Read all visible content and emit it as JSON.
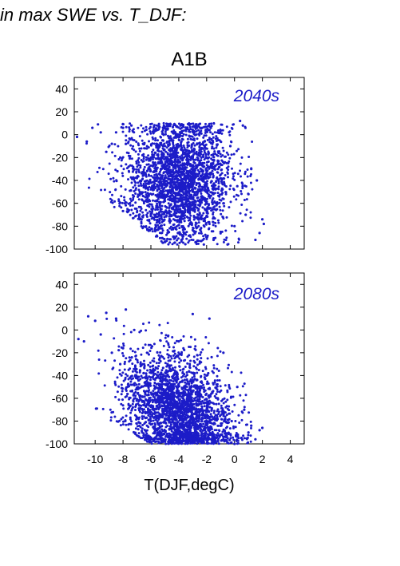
{
  "header_text": "in max SWE vs. T_DJF:",
  "figure_title": "A1B",
  "xlabel": "T(DJF,degC)",
  "colors": {
    "points": "#1c1cc8",
    "axes": "#000000",
    "background": "#ffffff"
  },
  "chart_data": [
    {
      "type": "scatter",
      "panel_label": "2040s",
      "xlim": [
        -11.5,
        5
      ],
      "ylim": [
        -100,
        50
      ],
      "yticks": [
        40,
        20,
        0,
        -20,
        -40,
        -60,
        -80,
        -100
      ],
      "xticks": [
        -10,
        -8,
        -6,
        -4,
        -2,
        0,
        2,
        4
      ],
      "grid": false,
      "points": [
        [
          -11.3,
          -2
        ],
        [
          -10.6,
          -6
        ],
        [
          -10.2,
          6
        ],
        [
          -9.6,
          2
        ],
        [
          -9.8,
          9
        ],
        [
          -9.2,
          -15
        ],
        [
          -8.8,
          -8
        ],
        [
          -8.5,
          2
        ],
        [
          -8.4,
          -32
        ],
        [
          -8.2,
          -20
        ],
        [
          -8.0,
          6
        ],
        [
          -7.6,
          -28
        ],
        [
          -7.4,
          8
        ],
        [
          -7.0,
          -38
        ],
        [
          -6.8,
          -50
        ],
        [
          -6.6,
          -18
        ],
        [
          -6.4,
          -58
        ],
        [
          -6.2,
          -62
        ],
        [
          -6.0,
          -70
        ],
        [
          -5.8,
          -44
        ],
        [
          -5.5,
          -76
        ],
        [
          -5.2,
          -82
        ],
        [
          -5.0,
          -30
        ],
        [
          -4.8,
          -86
        ],
        [
          -4.6,
          -55
        ],
        [
          -4.3,
          -90
        ],
        [
          -4.0,
          -65
        ],
        [
          -3.8,
          -92
        ],
        [
          -3.5,
          -40
        ],
        [
          -3.2,
          -88
        ],
        [
          -3.0,
          -20
        ],
        [
          -2.8,
          -94
        ],
        [
          -2.5,
          -70
        ],
        [
          -2.2,
          -96
        ],
        [
          -2.0,
          -50
        ],
        [
          -1.8,
          4
        ],
        [
          -1.5,
          -92
        ],
        [
          -1.2,
          -30
        ],
        [
          -1.0,
          -85
        ],
        [
          -0.8,
          -60
        ],
        [
          -0.5,
          -96
        ],
        [
          -0.3,
          -10
        ],
        [
          0.0,
          -80
        ],
        [
          0.2,
          -45
        ],
        [
          0.4,
          12
        ],
        [
          0.6,
          8
        ],
        [
          0.8,
          -70
        ],
        [
          1.0,
          -52
        ],
        [
          1.2,
          -30
        ],
        [
          1.5,
          -92
        ],
        [
          1.8,
          -86
        ],
        [
          2.0,
          -74
        ],
        [
          2.1,
          -78
        ],
        [
          1.6,
          -40
        ]
      ]
    },
    {
      "type": "scatter",
      "panel_label": "2080s",
      "xlim": [
        -11.5,
        5
      ],
      "ylim": [
        -100,
        50
      ],
      "yticks": [
        40,
        20,
        0,
        -20,
        -40,
        -60,
        -80,
        -100
      ],
      "xticks": [
        -10,
        -8,
        -6,
        -4,
        -2,
        0,
        2,
        4
      ],
      "grid": false,
      "points": [
        [
          -11.2,
          -8
        ],
        [
          -10.8,
          -10
        ],
        [
          -10.5,
          12
        ],
        [
          -10.0,
          8
        ],
        [
          -9.6,
          -4
        ],
        [
          -9.2,
          15
        ],
        [
          -8.8,
          -20
        ],
        [
          -8.5,
          10
        ],
        [
          -8.2,
          -30
        ],
        [
          -8.0,
          -16
        ],
        [
          -7.8,
          18
        ],
        [
          -7.5,
          -42
        ],
        [
          -7.2,
          0
        ],
        [
          -7.0,
          -52
        ],
        [
          -6.8,
          -58
        ],
        [
          -6.5,
          -66
        ],
        [
          -6.2,
          -72
        ],
        [
          -6.0,
          -80
        ],
        [
          -5.8,
          -86
        ],
        [
          -5.5,
          -90
        ],
        [
          -5.2,
          -95
        ],
        [
          -5.0,
          -60
        ],
        [
          -4.8,
          -30
        ],
        [
          -4.5,
          -98
        ],
        [
          -4.2,
          -76
        ],
        [
          -4.0,
          -10
        ],
        [
          -3.8,
          -99
        ],
        [
          -3.5,
          -88
        ],
        [
          -3.2,
          -50
        ],
        [
          -3.0,
          14
        ],
        [
          -2.8,
          -96
        ],
        [
          -2.5,
          -70
        ],
        [
          -2.2,
          -99
        ],
        [
          -2.0,
          -40
        ],
        [
          -1.8,
          10
        ],
        [
          -1.5,
          -98
        ],
        [
          -1.2,
          -60
        ],
        [
          -1.0,
          -92
        ],
        [
          -0.8,
          -20
        ],
        [
          -0.5,
          -99
        ],
        [
          -0.2,
          -80
        ],
        [
          0.0,
          -100
        ],
        [
          0.2,
          -50
        ],
        [
          0.5,
          -95
        ],
        [
          0.7,
          -70
        ],
        [
          1.0,
          -90
        ],
        [
          1.2,
          -84
        ],
        [
          1.5,
          -96
        ],
        [
          1.8,
          -88
        ],
        [
          2.0,
          -86
        ]
      ]
    }
  ]
}
